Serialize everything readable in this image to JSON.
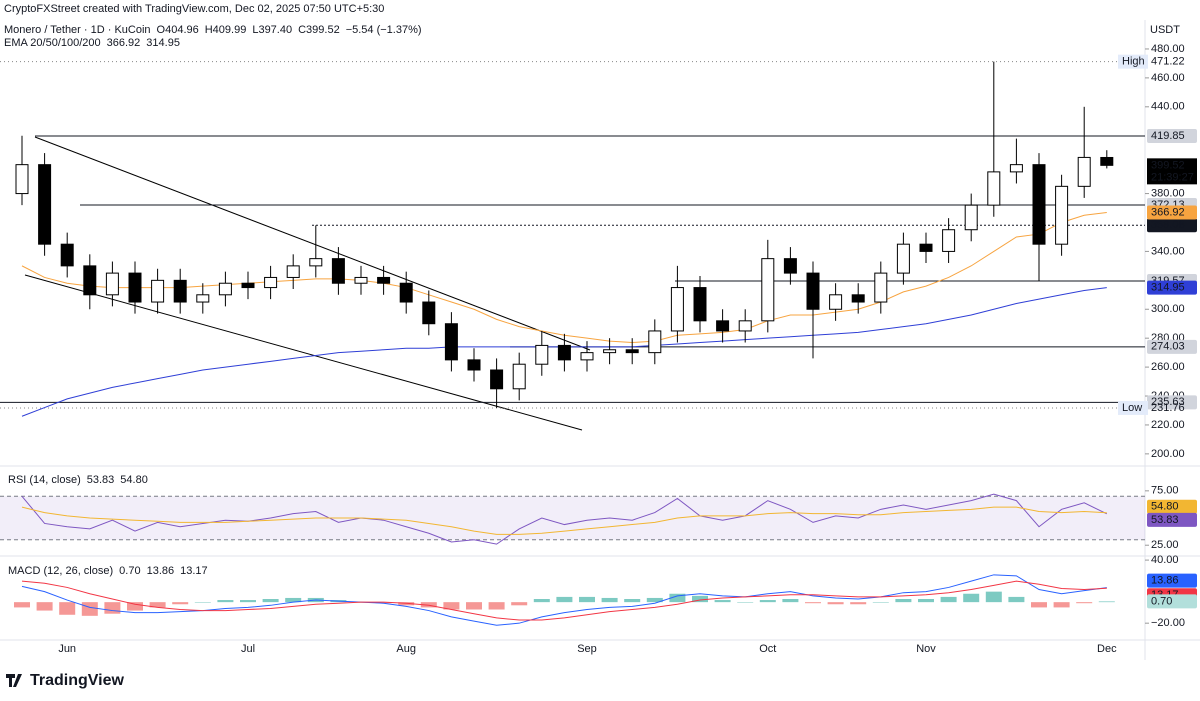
{
  "page": {
    "credit": "CryptoFXStreet created with TradingView.com, Dec 02, 2025 07:50 UTC+5:30",
    "symbol": "Monero / Tether · 1D · KuCoin",
    "ohlc": [
      "O404.96",
      "H409.99",
      "L397.40",
      "C399.52"
    ],
    "change": "−5.54 (−1.37%)",
    "currency": "USDT",
    "countdown": "21:39:27",
    "logo": "TradingView"
  },
  "chart_data": [
    {
      "type": "candlestick",
      "categories": [
        null,
        null,
        "Jun",
        null,
        null,
        null,
        null,
        null,
        null,
        null,
        "Jul",
        null,
        null,
        null,
        null,
        null,
        null,
        "Aug",
        null,
        null,
        null,
        null,
        null,
        null,
        null,
        "Sep",
        null,
        null,
        null,
        null,
        null,
        null,
        null,
        "Oct",
        null,
        null,
        null,
        null,
        null,
        null,
        "Nov",
        null,
        null,
        null,
        null,
        null,
        null,
        null,
        "Dec"
      ],
      "open": [
        380,
        400,
        345,
        330,
        310,
        325,
        305,
        320,
        305,
        310,
        318,
        315,
        322,
        330,
        335,
        318,
        322,
        318,
        305,
        290,
        265,
        258,
        245,
        262,
        275,
        265,
        270,
        272,
        270,
        285,
        315,
        292,
        285,
        292,
        335,
        325,
        300,
        310,
        305,
        325,
        345,
        340,
        355,
        372,
        395,
        400,
        345,
        385,
        404.96
      ],
      "high": [
        420,
        408,
        353,
        338,
        333,
        333,
        328,
        328,
        318,
        326,
        326,
        330,
        338,
        358,
        343,
        330,
        330,
        326,
        313,
        298,
        273,
        266,
        270,
        285,
        283,
        278,
        280,
        280,
        293,
        330,
        323,
        300,
        300,
        348,
        343,
        333,
        318,
        318,
        333,
        353,
        353,
        363,
        380,
        471.22,
        418,
        408,
        393,
        440,
        409.99
      ],
      "low": [
        372,
        337,
        322,
        300,
        302,
        297,
        297,
        297,
        297,
        302,
        307,
        307,
        314,
        322,
        310,
        310,
        310,
        297,
        282,
        257,
        250,
        231.76,
        237,
        254,
        257,
        257,
        262,
        262,
        262,
        277,
        284,
        277,
        277,
        284,
        317,
        266,
        292,
        297,
        297,
        317,
        332,
        332,
        347,
        364,
        387,
        319.57,
        337,
        377,
        397.4
      ],
      "close": [
        400,
        345,
        330,
        310,
        325,
        305,
        320,
        305,
        310,
        318,
        315,
        322,
        330,
        335,
        318,
        322,
        318,
        305,
        290,
        265,
        258,
        245,
        262,
        275,
        265,
        270,
        272,
        270,
        285,
        315,
        292,
        285,
        292,
        335,
        325,
        300,
        310,
        305,
        325,
        345,
        340,
        355,
        372,
        395,
        400,
        345,
        385,
        405,
        399.52
      ],
      "up_color": "#ffffff",
      "down_color": "#000000",
      "ema": {
        "label": "EMA 20/50/100/200",
        "series": [
          {
            "color": "#f7a440",
            "values": [
              330,
              322,
              318,
              316,
              315,
              315,
              315,
              315,
              316,
              317,
              318,
              319,
              320,
              321,
              321,
              320,
              318,
              315,
              310,
              305,
              300,
              293,
              288,
              285,
              282,
              280,
              278,
              277,
              278,
              282,
              283,
              284,
              286,
              292,
              296,
              296,
              298,
              300,
              305,
              312,
              316,
              322,
              330,
              340,
              350,
              352,
              360,
              365,
              366.92
            ]
          },
          {
            "color": "#2f3fd6",
            "values": [
              226,
              232,
              238,
              242,
              246,
              249,
              252,
              255,
              258,
              260,
              262,
              264,
              266,
              268,
              270,
              271,
              272,
              273,
              273,
              274,
              274,
              274,
              274,
              274,
              274,
              274,
              274,
              274,
              275,
              276,
              277,
              278,
              279,
              280,
              281,
              282,
              283,
              284,
              286,
              288,
              290,
              293,
              296,
              300,
              304,
              307,
              310,
              313,
              314.95
            ]
          }
        ]
      },
      "levels": [
        419.85,
        372.13,
        358.08,
        319.57,
        274.03,
        235.63
      ],
      "level_styles": [
        "solid",
        "solid",
        "dotted",
        "solid",
        "solid",
        "solid"
      ],
      "high_mark": {
        "label": "High",
        "value": 471.22
      },
      "low_mark": {
        "label": "Low",
        "value": 231.76
      },
      "ylim": [
        192.3,
        486.2
      ],
      "yticks": [
        {
          "value": 200,
          "label": "200.00"
        },
        {
          "value": 220,
          "label": "220.00"
        },
        {
          "value": 240,
          "label": "240.00"
        },
        {
          "value": 260,
          "label": "260.00"
        },
        {
          "value": 280,
          "label": "280.00"
        },
        {
          "value": 300,
          "label": "300.00"
        },
        {
          "value": 340,
          "label": "340.00"
        },
        {
          "value": 380,
          "label": "380.00"
        },
        {
          "value": 440,
          "label": "440.00"
        },
        {
          "value": 460,
          "label": "460.00"
        },
        {
          "value": 480,
          "label": "480.00"
        }
      ]
    },
    {
      "type": "rsi",
      "label": "RSI (14, close)",
      "series": [
        {
          "color": "#7e57c2",
          "values": [
            70,
            45,
            42,
            40,
            48,
            38,
            46,
            42,
            45,
            48,
            47,
            50,
            54,
            56,
            46,
            50,
            48,
            42,
            36,
            28,
            30,
            26,
            40,
            50,
            44,
            48,
            50,
            48,
            55,
            68,
            52,
            48,
            52,
            66,
            58,
            46,
            52,
            50,
            58,
            62,
            58,
            62,
            66,
            72,
            66,
            42,
            58,
            64,
            53.83
          ]
        },
        {
          "color": "#f2b632",
          "values": [
            60,
            55,
            52,
            50,
            49,
            48,
            47,
            46,
            46,
            46,
            47,
            48,
            49,
            50,
            50,
            50,
            49,
            48,
            45,
            42,
            38,
            35,
            35,
            36,
            38,
            40,
            42,
            44,
            46,
            50,
            52,
            52,
            52,
            54,
            55,
            54,
            54,
            53,
            53,
            55,
            56,
            57,
            58,
            60,
            60,
            56,
            55,
            56,
            54.8
          ],
          "value_labels": [
            null,
            null,
            null,
            null,
            null,
            null,
            null,
            null,
            null,
            null,
            null,
            null,
            null,
            null,
            null,
            null,
            null,
            null,
            null,
            null,
            null,
            null,
            null,
            null,
            null,
            null,
            null,
            null,
            null,
            null,
            null,
            null,
            null,
            null,
            null,
            null,
            null,
            null,
            null,
            null,
            null,
            null,
            null,
            null,
            null,
            null,
            null,
            null,
            "54.80"
          ]
        }
      ],
      "bands": [
        70,
        30
      ],
      "ylim": [
        16,
        96
      ],
      "yticks": [
        {
          "value": 75,
          "label": "75.00"
        },
        {
          "value": 25,
          "label": "25.00"
        }
      ]
    },
    {
      "type": "macd",
      "label": "MACD (12, 26, close)",
      "histogram": {
        "up_color": "#26a69a",
        "down_color": "#ef5350",
        "values": [
          -5,
          -8,
          -12,
          -13,
          -11,
          -8,
          -5,
          -2,
          0,
          2,
          2,
          3,
          4,
          4,
          2,
          0,
          -1,
          -3,
          -5,
          -7,
          -7,
          -7,
          -3,
          3,
          5,
          5,
          4,
          3,
          4,
          8,
          6,
          2,
          0,
          2,
          3,
          -1,
          -2,
          -2,
          0,
          3,
          3,
          5,
          8,
          10,
          5,
          -5,
          -5,
          -1,
          0.7
        ],
        "value_labels": [
          null,
          null,
          null,
          null,
          null,
          null,
          null,
          null,
          null,
          null,
          null,
          null,
          null,
          null,
          null,
          null,
          null,
          null,
          null,
          null,
          null,
          null,
          null,
          null,
          null,
          null,
          null,
          null,
          null,
          null,
          null,
          null,
          null,
          null,
          null,
          null,
          null,
          null,
          null,
          null,
          null,
          null,
          null,
          null,
          null,
          null,
          null,
          null,
          "0.70"
        ]
      },
      "series": [
        {
          "color": "#2962ff",
          "values": [
            15,
            10,
            2,
            -5,
            -8,
            -10,
            -10,
            -9,
            -8,
            -6,
            -5,
            -3,
            0,
            2,
            1,
            0,
            -1,
            -4,
            -8,
            -14,
            -18,
            -22,
            -20,
            -14,
            -10,
            -7,
            -5,
            -4,
            -1,
            6,
            8,
            6,
            5,
            8,
            10,
            6,
            4,
            3,
            5,
            9,
            10,
            14,
            20,
            26,
            25,
            12,
            8,
            11,
            13.86
          ]
        },
        {
          "color": "#f23645",
          "values": [
            20,
            18,
            14,
            8,
            3,
            -2,
            -5,
            -7,
            -8,
            -8,
            -7,
            -6,
            -4,
            -2,
            -1,
            0,
            0,
            -1,
            -3,
            -7,
            -11,
            -15,
            -17,
            -17,
            -15,
            -12,
            -9,
            -7,
            -5,
            -2,
            2,
            4,
            5,
            6,
            7,
            7,
            6,
            5,
            5,
            6,
            7,
            9,
            12,
            16,
            20,
            17,
            13,
            12,
            13.17
          ]
        }
      ],
      "ylim": [
        -36,
        42
      ],
      "yticks": [
        {
          "value": 40,
          "label": "40.00"
        },
        {
          "value": -20,
          "label": "−20.00"
        }
      ]
    }
  ]
}
